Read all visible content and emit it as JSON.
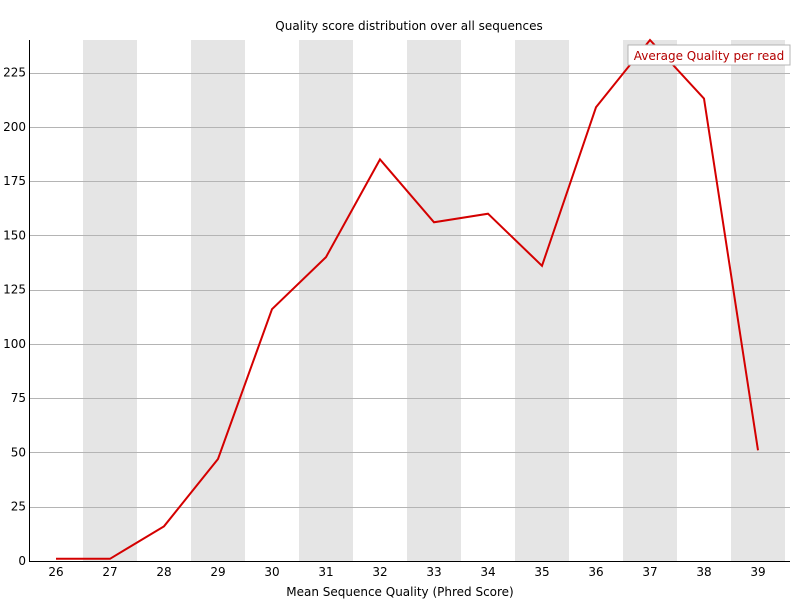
{
  "colors": {
    "line": "#d40000",
    "band": "#e5e5e5",
    "grid": "#b4b4b4",
    "axis": "#000000",
    "legend_text": "#b40000"
  },
  "chart_data": {
    "type": "line",
    "title": "Quality score distribution over all sequences",
    "xlabel": "Mean Sequence Quality (Phred Score)",
    "ylabel": "",
    "x": [
      26,
      27,
      28,
      29,
      30,
      31,
      32,
      33,
      34,
      35,
      36,
      37,
      38,
      39
    ],
    "xlim": [
      26,
      39
    ],
    "ylim": [
      0,
      240
    ],
    "yticks": [
      0,
      25,
      50,
      75,
      100,
      125,
      150,
      175,
      200,
      225
    ],
    "grid": true,
    "legend_position": "top-right",
    "series": [
      {
        "name": "Average Quality per read",
        "values": [
          1,
          1,
          16,
          47,
          116,
          140,
          185,
          156,
          160,
          136,
          209,
          240,
          213,
          51
        ]
      }
    ]
  }
}
